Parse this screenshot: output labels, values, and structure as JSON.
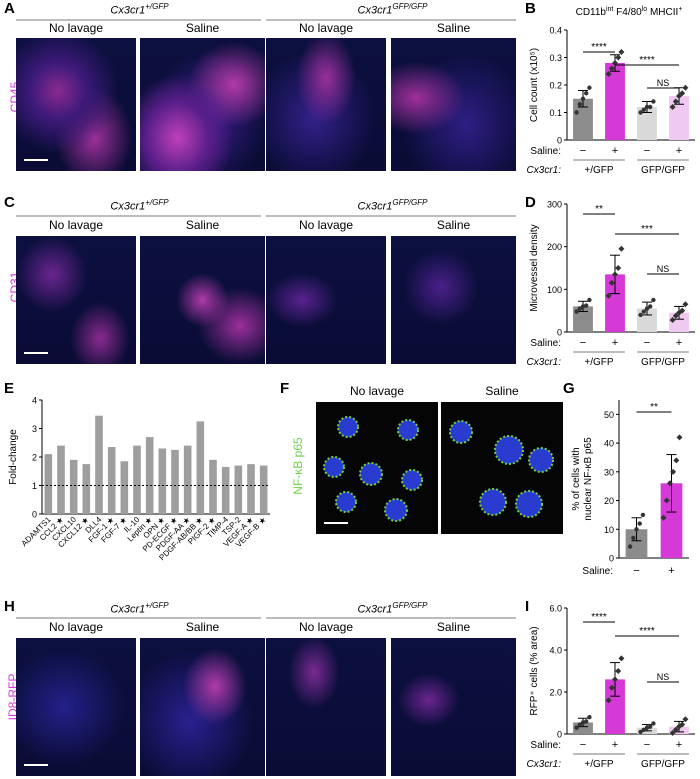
{
  "panels": {
    "A": "A",
    "B": "B",
    "C": "C",
    "D": "D",
    "E": "E",
    "F": "F",
    "G": "G",
    "H": "H",
    "I": "I"
  },
  "genotype_headers": {
    "gfp_het_base": "Cx3cr1",
    "gfp_het_sup": "+/GFP",
    "gfp_ko_base": "Cx3cr1",
    "gfp_ko_sup": "GFP/GFP"
  },
  "conditions": {
    "no_lavage": "No lavage",
    "saline": "Saline"
  },
  "stains": {
    "A": "CD45",
    "C": "CD31",
    "F": "NF-κB p65",
    "H": "ID8-RFP"
  },
  "colors": {
    "magenta": "#d63ad6",
    "blue_dapi": "#1a1fd0",
    "green": "#6fd24a",
    "gray_bar": "#9e9e9e",
    "light_gray": "#d9d9d9",
    "light_pink": "#f0c9f0"
  },
  "chart_data": [
    {
      "panel": "B",
      "type": "bar",
      "title": "CD11bint F4/80lo MHCII+",
      "title_parts": {
        "a": "CD11b",
        "b": "int",
        "c": " F4/80",
        "d": "lo",
        "e": " MHCII",
        "f": "+"
      },
      "ylabel": "Cell count (x10⁵)",
      "ylim": [
        0,
        0.4
      ],
      "yticks": [
        "0",
        "0.1",
        "0.2",
        "0.3",
        "0.4"
      ],
      "categories": [
        "+/GFP −",
        "+/GFP +",
        "GFP/GFP −",
        "GFP/GFP +"
      ],
      "values": [
        0.15,
        0.28,
        0.12,
        0.16
      ],
      "errors": [
        0.03,
        0.03,
        0.02,
        0.03
      ],
      "points": [
        [
          0.1,
          0.13,
          0.15,
          0.17,
          0.19
        ],
        [
          0.24,
          0.26,
          0.28,
          0.3,
          0.32
        ],
        [
          0.1,
          0.11,
          0.12,
          0.12,
          0.14
        ],
        [
          0.12,
          0.14,
          0.16,
          0.17,
          0.19
        ]
      ],
      "bar_colors": [
        "#8c8c8c",
        "#d63ad6",
        "#d9d9d9",
        "#f0c9f0"
      ],
      "sig": [
        {
          "from": 0,
          "to": 1,
          "label": "****"
        },
        {
          "from": 1,
          "to": 3,
          "label": "****"
        },
        {
          "from": 2,
          "to": 3,
          "label": "NS"
        }
      ],
      "saline_label": "Saline:",
      "cx_label": "Cx3cr1:",
      "saline_marks": [
        "−",
        "+",
        "−",
        "+"
      ],
      "groups": [
        "+/GFP",
        "GFP/GFP"
      ]
    },
    {
      "panel": "D",
      "type": "bar",
      "ylabel": "Microvessel density",
      "ylim": [
        0,
        300
      ],
      "yticks": [
        "0",
        "100",
        "200",
        "300"
      ],
      "categories": [
        "+/GFP −",
        "+/GFP +",
        "GFP/GFP −",
        "GFP/GFP +"
      ],
      "values": [
        60,
        135,
        55,
        45
      ],
      "errors": [
        12,
        45,
        15,
        15
      ],
      "points": [
        [
          48,
          55,
          60,
          62,
          75
        ],
        [
          85,
          115,
          135,
          150,
          195
        ],
        [
          40,
          48,
          55,
          60,
          75
        ],
        [
          28,
          38,
          45,
          50,
          65
        ]
      ],
      "bar_colors": [
        "#8c8c8c",
        "#d63ad6",
        "#d9d9d9",
        "#f0c9f0"
      ],
      "sig": [
        {
          "from": 0,
          "to": 1,
          "label": "**"
        },
        {
          "from": 1,
          "to": 3,
          "label": "***"
        },
        {
          "from": 2,
          "to": 3,
          "label": "NS"
        }
      ],
      "saline_label": "Saline:",
      "cx_label": "Cx3cr1:",
      "saline_marks": [
        "−",
        "+",
        "−",
        "+"
      ],
      "groups": [
        "+/GFP",
        "GFP/GFP"
      ]
    },
    {
      "panel": "E",
      "type": "bar",
      "ylabel": "Fold-change",
      "ylim": [
        0,
        4
      ],
      "yticks": [
        "0",
        "1",
        "2",
        "3",
        "4"
      ],
      "reference_line": 1,
      "categories": [
        "ADAMTS1",
        "CCL2",
        "CXCL10",
        "CXCL12",
        "DLL4",
        "FGF-1",
        "FGF-7",
        "IL-10",
        "Leptin",
        "OPN",
        "PD-ECGF",
        "PDGF-AA",
        "PDGF-AB/BB",
        "PIGF-2",
        "TIMP-4",
        "TSP-2",
        "VEGF-A",
        "VEGF-B"
      ],
      "starred": [
        false,
        true,
        false,
        true,
        false,
        true,
        true,
        false,
        true,
        true,
        true,
        true,
        true,
        true,
        false,
        false,
        true,
        true
      ],
      "values": [
        2.1,
        2.4,
        1.9,
        1.75,
        3.45,
        2.35,
        1.85,
        2.4,
        2.7,
        2.3,
        2.25,
        2.4,
        3.25,
        1.9,
        1.65,
        1.7,
        1.75,
        1.7
      ]
    },
    {
      "panel": "G",
      "type": "bar",
      "ylabel_line1": "% of cells with",
      "ylabel_line2": "nuclear NF-κB p65",
      "ylim": [
        0,
        55
      ],
      "yticks": [
        "0",
        "10",
        "20",
        "30",
        "40",
        "50"
      ],
      "categories": [
        "−",
        "+"
      ],
      "values": [
        10,
        26
      ],
      "errors": [
        4,
        10
      ],
      "points": [
        [
          4,
          7,
          10,
          12,
          15
        ],
        [
          14,
          20,
          26,
          30,
          34,
          42
        ]
      ],
      "bar_colors": [
        "#8c8c8c",
        "#d63ad6"
      ],
      "sig": [
        {
          "from": 0,
          "to": 1,
          "label": "**"
        }
      ],
      "saline_label": "Saline:"
    },
    {
      "panel": "I",
      "type": "bar",
      "ylabel": "RFP⁺ cells (% area)",
      "ylim": [
        0,
        6
      ],
      "yticks": [
        "0",
        "2.0",
        "4.0",
        "6.0"
      ],
      "categories": [
        "+/GFP −",
        "+/GFP +",
        "GFP/GFP −",
        "GFP/GFP +"
      ],
      "values": [
        0.55,
        2.6,
        0.3,
        0.35
      ],
      "errors": [
        0.2,
        0.8,
        0.15,
        0.25
      ],
      "points": [
        [
          0.3,
          0.45,
          0.55,
          0.6,
          0.8
        ],
        [
          1.6,
          2.2,
          2.6,
          3.0,
          3.6
        ],
        [
          0.1,
          0.2,
          0.3,
          0.35,
          0.5
        ],
        [
          0.05,
          0.2,
          0.35,
          0.45,
          0.7
        ]
      ],
      "bar_colors": [
        "#8c8c8c",
        "#d63ad6",
        "#d9d9d9",
        "#f0c9f0"
      ],
      "sig": [
        {
          "from": 0,
          "to": 1,
          "label": "****"
        },
        {
          "from": 1,
          "to": 3,
          "label": "****"
        },
        {
          "from": 2,
          "to": 3,
          "label": "NS"
        }
      ],
      "saline_label": "Saline:",
      "cx_label": "Cx3cr1:",
      "saline_marks": [
        "−",
        "+",
        "−",
        "+"
      ],
      "groups": [
        "+/GFP",
        "GFP/GFP"
      ]
    }
  ]
}
